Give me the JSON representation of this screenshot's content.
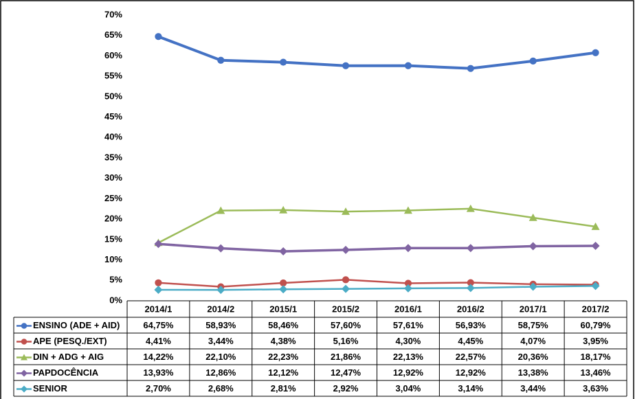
{
  "chart_data": {
    "type": "line",
    "categories": [
      "2014/1",
      "2014/2",
      "2015/1",
      "2015/2",
      "2016/1",
      "2016/2",
      "2017/1",
      "2017/2"
    ],
    "ylim": [
      0,
      70
    ],
    "yticks": [
      {
        "value": 0,
        "label": "0%"
      },
      {
        "value": 5,
        "label": "5%"
      },
      {
        "value": 10,
        "label": "10%"
      },
      {
        "value": 15,
        "label": "15%"
      },
      {
        "value": 20,
        "label": "20%"
      },
      {
        "value": 25,
        "label": "25%"
      },
      {
        "value": 30,
        "label": "30%"
      },
      {
        "value": 35,
        "label": "35%"
      },
      {
        "value": 40,
        "label": "40%"
      },
      {
        "value": 45,
        "label": "45%"
      },
      {
        "value": 50,
        "label": "50%"
      },
      {
        "value": 55,
        "label": "55%"
      },
      {
        "value": 60,
        "label": "60%"
      },
      {
        "value": 65,
        "label": "65%"
      },
      {
        "value": 70,
        "label": "70%"
      }
    ],
    "grid": false,
    "series": [
      {
        "name": "ENSINO (ADE + AID)",
        "color": "#4472c4",
        "marker": "circle",
        "values": [
          64.75,
          58.93,
          58.46,
          57.6,
          57.61,
          56.93,
          58.75,
          60.79
        ],
        "value_labels": [
          "64,75%",
          "58,93%",
          "58,46%",
          "57,60%",
          "57,61%",
          "56,93%",
          "58,75%",
          "60,79%"
        ]
      },
      {
        "name": "APE (PESQ./EXT)",
        "color": "#c0504d",
        "marker": "circle",
        "values": [
          4.41,
          3.44,
          4.38,
          5.16,
          4.3,
          4.45,
          4.07,
          3.95
        ],
        "value_labels": [
          "4,41%",
          "3,44%",
          "4,38%",
          "5,16%",
          "4,30%",
          "4,45%",
          "4,07%",
          "3,95%"
        ]
      },
      {
        "name": "DIN + ADG + AIG",
        "color": "#9bbb59",
        "marker": "triangle",
        "values": [
          14.22,
          22.1,
          22.23,
          21.86,
          22.13,
          22.57,
          20.36,
          18.17
        ],
        "value_labels": [
          "14,22%",
          "22,10%",
          "22,23%",
          "21,86%",
          "22,13%",
          "22,57%",
          "20,36%",
          "18,17%"
        ]
      },
      {
        "name": "PAPDOCÊNCIA",
        "color": "#8064a2",
        "marker": "diamond",
        "values": [
          13.93,
          12.86,
          12.12,
          12.47,
          12.92,
          12.92,
          13.38,
          13.46
        ],
        "value_labels": [
          "13,93%",
          "12,86%",
          "12,12%",
          "12,47%",
          "12,92%",
          "12,92%",
          "13,38%",
          "13,46%"
        ]
      },
      {
        "name": "SENIOR",
        "color": "#4bacc6",
        "marker": "diamond",
        "values": [
          2.7,
          2.68,
          2.81,
          2.92,
          3.04,
          3.14,
          3.44,
          3.63
        ],
        "value_labels": [
          "2,70%",
          "2,68%",
          "2,81%",
          "2,92%",
          "3,04%",
          "3,14%",
          "3,44%",
          "3,63%"
        ]
      }
    ]
  }
}
